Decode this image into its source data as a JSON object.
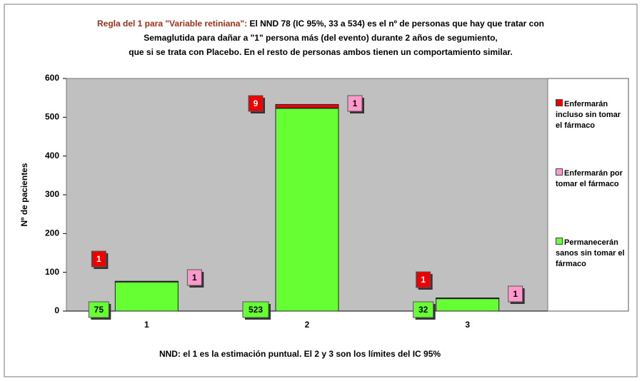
{
  "chart_data": {
    "type": "stacked_bar",
    "title_lead": "Regla del 1 para \"Variable retiniana\":",
    "title_lines": [
      " El NND 78 (IC 95%, 33 a 534) es el nº de personas que hay que tratar con",
      "Semaglutida para dañar a \"1\" persona más (del evento) durante 2 años de segumiento,",
      "que si se trata con Placebo. En el resto de personas ambos tienen un comportamiento similar."
    ],
    "ylabel": "Nº de pacientes",
    "note": "NND: el 1 es la estimación puntual.  El 2 y 3 son los límites del IC 95%",
    "categories": [
      "1",
      "2",
      "3"
    ],
    "series": [
      {
        "name": "Permanecerán sanos sin tomar el fármaco",
        "color": "#66ff33",
        "values": [
          75,
          523,
          32
        ]
      },
      {
        "name": "Enfermarán por tomar el fármaco",
        "color": "#ff99cc",
        "values": [
          1,
          1,
          1
        ]
      },
      {
        "name": "Enfermarán incluso sin tomar el fármaco",
        "color": "#ee0000",
        "values": [
          1,
          9,
          1
        ]
      }
    ],
    "ylim": [
      0,
      600
    ],
    "yticks": [
      0,
      100,
      200,
      300,
      400,
      500,
      600
    ],
    "grid": false,
    "plot_background": "#c0c0c0"
  }
}
